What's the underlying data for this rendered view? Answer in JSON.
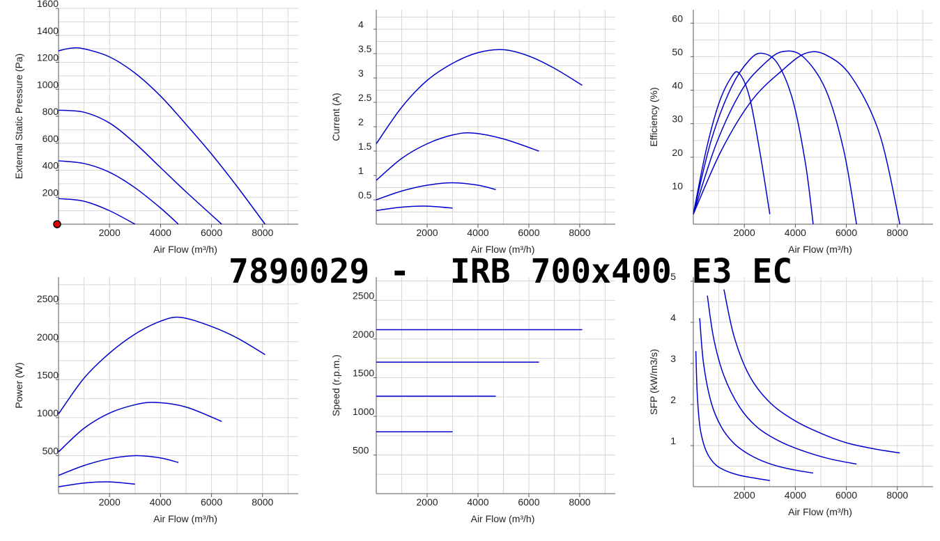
{
  "title": "7890029 -  IRB 700x400 E3 EC",
  "series_color": "#0000cc",
  "marker_color": "#dd0000",
  "chart_data": [
    {
      "type": "line",
      "id": "pressure",
      "xlabel": "Air Flow (m³/h)",
      "ylabel": "External Static Pressure (Pa)",
      "xlim": [
        0,
        9400
      ],
      "ylim": [
        0,
        1600
      ],
      "xticks": [
        "2000",
        "4000",
        "6000",
        "8000"
      ],
      "xtick_values": [
        2000,
        4000,
        6000,
        8000
      ],
      "yticks": [
        "200",
        "400",
        "600",
        "800",
        "1000",
        "1200",
        "1400",
        "1600"
      ],
      "ytick_values": [
        200,
        400,
        600,
        800,
        1000,
        1200,
        1400,
        1600
      ],
      "grid": true,
      "marker": {
        "x": 0,
        "y": 0
      },
      "series": [
        {
          "x": [
            0,
            500,
            1000,
            2000,
            3000,
            4000,
            5000,
            6000,
            7000,
            8100
          ],
          "y": [
            1285,
            1305,
            1300,
            1240,
            1120,
            950,
            740,
            520,
            280,
            0
          ]
        },
        {
          "x": [
            0,
            1000,
            2000,
            3000,
            4000,
            5000,
            6400
          ],
          "y": [
            845,
            830,
            750,
            600,
            420,
            240,
            0
          ]
        },
        {
          "x": [
            0,
            1000,
            2000,
            3000,
            4000,
            4700
          ],
          "y": [
            470,
            450,
            385,
            270,
            120,
            0
          ]
        },
        {
          "x": [
            0,
            1000,
            2000,
            3000
          ],
          "y": [
            190,
            170,
            100,
            0
          ]
        }
      ]
    },
    {
      "type": "line",
      "id": "current",
      "xlabel": "Air Flow (m³/h)",
      "ylabel": "Current (A)",
      "xlim": [
        0,
        9400
      ],
      "ylim": [
        0,
        4.4
      ],
      "xticks": [
        "2000",
        "4000",
        "6000",
        "8000"
      ],
      "xtick_values": [
        2000,
        4000,
        6000,
        8000
      ],
      "yticks": [
        "0.5",
        "1",
        "1.5",
        "2",
        "2.5",
        "3",
        "3.5",
        "4"
      ],
      "ytick_values": [
        0.5,
        1,
        1.5,
        2,
        2.5,
        3,
        3.5,
        4
      ],
      "grid": true,
      "series": [
        {
          "x": [
            0,
            1000,
            2000,
            3000,
            4000,
            5000,
            6000,
            7000,
            8100
          ],
          "y": [
            1.65,
            2.4,
            2.95,
            3.3,
            3.52,
            3.58,
            3.45,
            3.2,
            2.85
          ]
        },
        {
          "x": [
            0,
            1000,
            2000,
            3000,
            3800,
            5000,
            6400
          ],
          "y": [
            0.9,
            1.35,
            1.65,
            1.83,
            1.87,
            1.75,
            1.5
          ]
        },
        {
          "x": [
            0,
            1000,
            2000,
            3000,
            4000,
            4700
          ],
          "y": [
            0.5,
            0.68,
            0.8,
            0.85,
            0.8,
            0.71
          ]
        },
        {
          "x": [
            0,
            1000,
            2000,
            3000
          ],
          "y": [
            0.28,
            0.35,
            0.37,
            0.33
          ]
        }
      ]
    },
    {
      "type": "line",
      "id": "efficiency",
      "xlabel": "Air Flow (m³/h)",
      "ylabel": "Efficiency (%)",
      "xlim": [
        0,
        9400
      ],
      "ylim": [
        0,
        64
      ],
      "xticks": [
        "2000",
        "4000",
        "6000",
        "8000"
      ],
      "xtick_values": [
        2000,
        4000,
        6000,
        8000
      ],
      "yticks": [
        "10",
        "20",
        "30",
        "40",
        "50",
        "60"
      ],
      "ytick_values": [
        10,
        20,
        30,
        40,
        50,
        60
      ],
      "grid": true,
      "series": [
        {
          "x": [
            0,
            500,
            1000,
            1500,
            1800,
            2200,
            2600,
            3000
          ],
          "y": [
            3,
            22,
            36,
            44,
            45,
            38,
            22,
            3
          ]
        },
        {
          "x": [
            0,
            700,
            1500,
            2200,
            2700,
            3300,
            3900,
            4400,
            4700
          ],
          "y": [
            3,
            25,
            41,
            49,
            51,
            48,
            37,
            18,
            0
          ]
        },
        {
          "x": [
            0,
            900,
            1900,
            2800,
            3500,
            4300,
            5200,
            5900,
            6400
          ],
          "y": [
            3,
            24,
            40,
            48,
            51.5,
            50,
            40,
            22,
            0
          ]
        },
        {
          "x": [
            0,
            1100,
            2300,
            3500,
            4400,
            5200,
            6200,
            7300,
            8100
          ],
          "y": [
            3,
            22,
            37,
            46,
            51,
            50.5,
            44,
            27,
            0
          ]
        }
      ]
    },
    {
      "type": "line",
      "id": "power",
      "xlabel": "Air Flow (m³/h)",
      "ylabel": "Power (W)",
      "xlim": [
        0,
        9400
      ],
      "ylim": [
        0,
        2850
      ],
      "xticks": [
        "2000",
        "4000",
        "6000",
        "8000"
      ],
      "xtick_values": [
        2000,
        4000,
        6000,
        8000
      ],
      "yticks": [
        "500",
        "1000",
        "1500",
        "2000",
        "2500"
      ],
      "ytick_values": [
        500,
        1000,
        1500,
        2000,
        2500
      ],
      "grid": true,
      "series": [
        {
          "x": [
            0,
            1000,
            2000,
            3000,
            4000,
            4800,
            6000,
            7000,
            8100
          ],
          "y": [
            1050,
            1520,
            1850,
            2100,
            2270,
            2320,
            2200,
            2050,
            1830
          ]
        },
        {
          "x": [
            0,
            1000,
            2000,
            3000,
            3800,
            5000,
            6400
          ],
          "y": [
            550,
            860,
            1060,
            1170,
            1200,
            1140,
            950
          ]
        },
        {
          "x": [
            0,
            1000,
            2000,
            3000,
            4000,
            4700
          ],
          "y": [
            240,
            370,
            460,
            500,
            470,
            410
          ]
        },
        {
          "x": [
            0,
            1000,
            2000,
            3000
          ],
          "y": [
            90,
            140,
            155,
            125
          ]
        }
      ]
    },
    {
      "type": "line",
      "id": "speed",
      "xlabel": "Air Flow (m³/h)",
      "ylabel": "Speed (r.p.m.)",
      "xlim": [
        0,
        9400
      ],
      "ylim": [
        0,
        2800
      ],
      "xticks": [
        "2000",
        "4000",
        "6000",
        "8000"
      ],
      "xtick_values": [
        2000,
        4000,
        6000,
        8000
      ],
      "yticks": [
        "500",
        "1000",
        "1500",
        "2000",
        "2500"
      ],
      "ytick_values": [
        500,
        1000,
        1500,
        2000,
        2500
      ],
      "grid": true,
      "series": [
        {
          "x": [
            0,
            8100
          ],
          "y": [
            2120,
            2120
          ]
        },
        {
          "x": [
            0,
            6400
          ],
          "y": [
            1700,
            1700
          ]
        },
        {
          "x": [
            0,
            4700
          ],
          "y": [
            1260,
            1260
          ]
        },
        {
          "x": [
            0,
            3000
          ],
          "y": [
            800,
            800
          ]
        }
      ]
    },
    {
      "type": "line",
      "id": "sfp",
      "xlabel": "Air Flow (m³/h)",
      "ylabel": "SFP (kW/m3/s)",
      "xlim": [
        0,
        9400
      ],
      "ylim": [
        0,
        5.1
      ],
      "xticks": [
        "2000",
        "4000",
        "6000",
        "8000"
      ],
      "xtick_values": [
        2000,
        4000,
        6000,
        8000
      ],
      "yticks": [
        "1",
        "2",
        "3",
        "4",
        "5"
      ],
      "ytick_values": [
        1,
        2,
        3,
        4,
        5
      ],
      "grid": true,
      "series": [
        {
          "x": [
            100,
            150,
            250,
            400,
            600,
            900,
            1300,
            1800,
            2400,
            3000
          ],
          "y": [
            3.3,
            2.3,
            1.5,
            1.05,
            0.75,
            0.52,
            0.38,
            0.28,
            0.21,
            0.15
          ]
        },
        {
          "x": [
            250,
            400,
            700,
            1100,
            1600,
            2200,
            2900,
            3700,
            4700
          ],
          "y": [
            4.1,
            3.0,
            2.05,
            1.45,
            1.05,
            0.78,
            0.58,
            0.44,
            0.33
          ]
        },
        {
          "x": [
            550,
            800,
            1200,
            1800,
            2500,
            3400,
            4400,
            5400,
            6400
          ],
          "y": [
            4.65,
            3.6,
            2.7,
            1.95,
            1.45,
            1.1,
            0.85,
            0.67,
            0.55
          ]
        },
        {
          "x": [
            1200,
            1600,
            2200,
            3000,
            4000,
            5000,
            6000,
            7100,
            8100
          ],
          "y": [
            4.8,
            3.65,
            2.7,
            2.05,
            1.6,
            1.3,
            1.07,
            0.92,
            0.82
          ]
        }
      ]
    }
  ]
}
